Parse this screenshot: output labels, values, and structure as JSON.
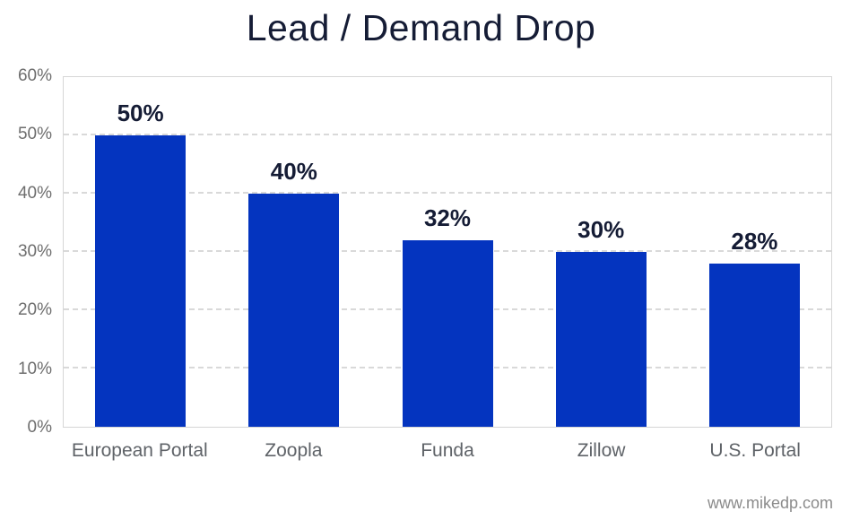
{
  "page": {
    "background": "#ffffff"
  },
  "chart_data": {
    "type": "bar",
    "title": "Lead / Demand Drop",
    "categories": [
      "European Portal",
      "Zoopla",
      "Funda",
      "Zillow",
      "U.S. Portal"
    ],
    "values": [
      50,
      40,
      32,
      30,
      28
    ],
    "value_labels": [
      "50%",
      "40%",
      "32%",
      "30%",
      "28%"
    ],
    "xlabel": "",
    "ylabel": "",
    "ylim": [
      0,
      60
    ],
    "ytick_step": 10,
    "yticks": [
      "0%",
      "10%",
      "20%",
      "30%",
      "40%",
      "50%",
      "60%"
    ],
    "grid": "horizontal-dashed",
    "legend_position": "none",
    "colors": {
      "bar": "#0434bf",
      "title": "#151c35",
      "data_label": "#151c35",
      "axis_tick_label": "#6e6e6e",
      "category_label": "#5f6368",
      "gridline": "#d9d9d9",
      "plot_border": "#d6d6d6",
      "watermark": "#8b8b8b",
      "background": "#ffffff"
    }
  },
  "footer": {
    "watermark": "www.mikedp.com"
  }
}
